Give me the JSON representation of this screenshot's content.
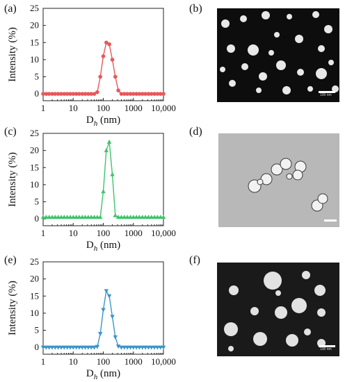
{
  "panels": {
    "a": "(a)",
    "b": "(b)",
    "c": "(c)",
    "d": "(d)",
    "e": "(e)",
    "f": "(f)"
  },
  "chart_data": [
    {
      "type": "line",
      "panel": "(a)",
      "color": "#e8585a",
      "marker": "circle",
      "xscale": "log",
      "xlim": [
        1,
        10000
      ],
      "ylim": [
        -2,
        25
      ],
      "xticks": [
        "1",
        "10",
        "100",
        "1000",
        "10,000"
      ],
      "yticks": [
        "0",
        "5",
        "10",
        "15",
        "20",
        "25"
      ],
      "xlabel": "D",
      "xlabel_sub": "h",
      "xlabel_unit": " (nm)",
      "ylabel": "Intensity (%)",
      "x": [
        1,
        1.26,
        1.58,
        2.0,
        2.51,
        3.16,
        3.98,
        5.01,
        6.31,
        7.94,
        10,
        12.6,
        15.8,
        20,
        25.1,
        31.6,
        39.8,
        50.1,
        63.1,
        79.4,
        100,
        126,
        158,
        200,
        251,
        316,
        398,
        501,
        631,
        794,
        1000,
        1260,
        1580,
        2000,
        2510,
        3160,
        3980,
        5010,
        6310,
        7940,
        10000
      ],
      "y": [
        0,
        0,
        0,
        0,
        0,
        0,
        0,
        0,
        0,
        0,
        0,
        0,
        0,
        0,
        0,
        0,
        0,
        0,
        0.5,
        5,
        11,
        15,
        14.5,
        10,
        5,
        1,
        0,
        0,
        0,
        0,
        0,
        0,
        0,
        0,
        0,
        0,
        0,
        0,
        0,
        0,
        0
      ]
    },
    {
      "type": "line",
      "panel": "(c)",
      "color": "#3ec46a",
      "marker": "triangle-up",
      "xscale": "log",
      "xlim": [
        1,
        10000
      ],
      "ylim": [
        -2,
        25
      ],
      "xticks": [
        "1",
        "10",
        "100",
        "1000",
        "10,000"
      ],
      "yticks": [
        "0",
        "5",
        "10",
        "15",
        "20",
        "25"
      ],
      "xlabel": "D",
      "xlabel_sub": "h",
      "xlabel_unit": " (nm)",
      "ylabel": "Intensity (%)",
      "x": [
        1,
        1.26,
        1.58,
        2.0,
        2.51,
        3.16,
        3.98,
        5.01,
        6.31,
        7.94,
        10,
        12.6,
        15.8,
        20,
        25.1,
        31.6,
        39.8,
        50.1,
        63.1,
        79.4,
        100,
        126,
        158,
        200,
        251,
        316,
        398,
        501,
        631,
        794,
        1000,
        1260,
        1580,
        2000,
        2510,
        3160,
        3980,
        5010,
        6310,
        7940,
        10000
      ],
      "y": [
        0.5,
        0.5,
        0.5,
        0.5,
        0.5,
        0.5,
        0.5,
        0.5,
        0.5,
        0.5,
        0.5,
        0.5,
        0.5,
        0.5,
        0.5,
        0.5,
        0.5,
        0.5,
        0.5,
        0.5,
        8,
        20,
        22.5,
        13,
        1,
        0.5,
        0.5,
        0.5,
        0.5,
        0.5,
        0.5,
        0.5,
        0.5,
        0.5,
        0.5,
        0.5,
        0.5,
        0.5,
        0.5,
        0.5,
        0.5
      ]
    },
    {
      "type": "line",
      "panel": "(e)",
      "color": "#3a95c9",
      "marker": "triangle-down",
      "xscale": "log",
      "xlim": [
        1,
        10000
      ],
      "ylim": [
        -2,
        25
      ],
      "xticks": [
        "1",
        "10",
        "100",
        "1000",
        "10,000"
      ],
      "yticks": [
        "0",
        "5",
        "10",
        "15",
        "20",
        "25"
      ],
      "xlabel": "D",
      "xlabel_sub": "h",
      "xlabel_unit": " (nm)",
      "ylabel": "Intensity (%)",
      "x": [
        1,
        1.26,
        1.58,
        2.0,
        2.51,
        3.16,
        3.98,
        5.01,
        6.31,
        7.94,
        10,
        12.6,
        15.8,
        20,
        25.1,
        31.6,
        39.8,
        50.1,
        63.1,
        79.4,
        100,
        126,
        158,
        200,
        251,
        316,
        398,
        501,
        631,
        794,
        1000,
        1260,
        1580,
        2000,
        2510,
        3160,
        3980,
        5010,
        6310,
        7940,
        10000
      ],
      "y": [
        0,
        0,
        0,
        0,
        0,
        0,
        0,
        0,
        0,
        0,
        0,
        0,
        0,
        0,
        0,
        0,
        0,
        0,
        0.2,
        4,
        11,
        16.5,
        15,
        9,
        3,
        0.3,
        0,
        0,
        0,
        0,
        0,
        0,
        0,
        0,
        0,
        0,
        0,
        0,
        0,
        0,
        0
      ]
    }
  ],
  "tem_images": [
    {
      "panel": "(b)",
      "scale_bar_text": "100 nm"
    },
    {
      "panel": "(d)",
      "scale_bar_text": ""
    },
    {
      "panel": "(f)",
      "scale_bar_text": "100 nm"
    }
  ]
}
